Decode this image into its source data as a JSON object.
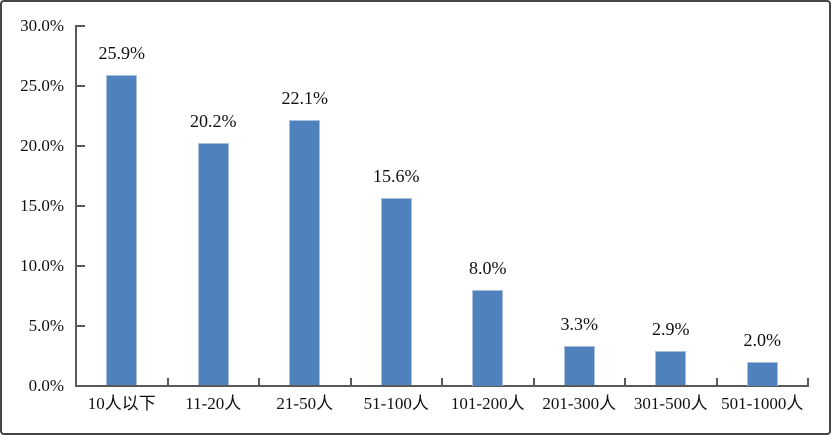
{
  "chart_data": {
    "type": "bar",
    "title": "",
    "xlabel": "",
    "ylabel": "",
    "grid": false,
    "legend": null,
    "categories": [
      "10人以下",
      "11-20人",
      "21-50人",
      "51-100人",
      "101-200人",
      "201-300人",
      "301-500人",
      "501-1000人"
    ],
    "values": [
      25.9,
      20.2,
      22.1,
      15.6,
      8.0,
      3.3,
      2.9,
      2.0
    ],
    "data_labels": [
      "25.9%",
      "20.2%",
      "22.1%",
      "15.6%",
      "8.0%",
      "3.3%",
      "2.9%",
      "2.0%"
    ],
    "y_axis": {
      "min": 0,
      "max": 30,
      "step": 5,
      "tick_labels": [
        "30.0%",
        "25.0%",
        "20.0%",
        "15.0%",
        "10.0%",
        "5.0%",
        "0.0%"
      ]
    },
    "bar_color": "#4f81bd"
  },
  "colors": {
    "bar": "#4f81bd",
    "bar_edge": "#a8c0de",
    "axis": "#595959",
    "text": "#111111",
    "frame_border": "#454545",
    "background": "#ffffff"
  }
}
